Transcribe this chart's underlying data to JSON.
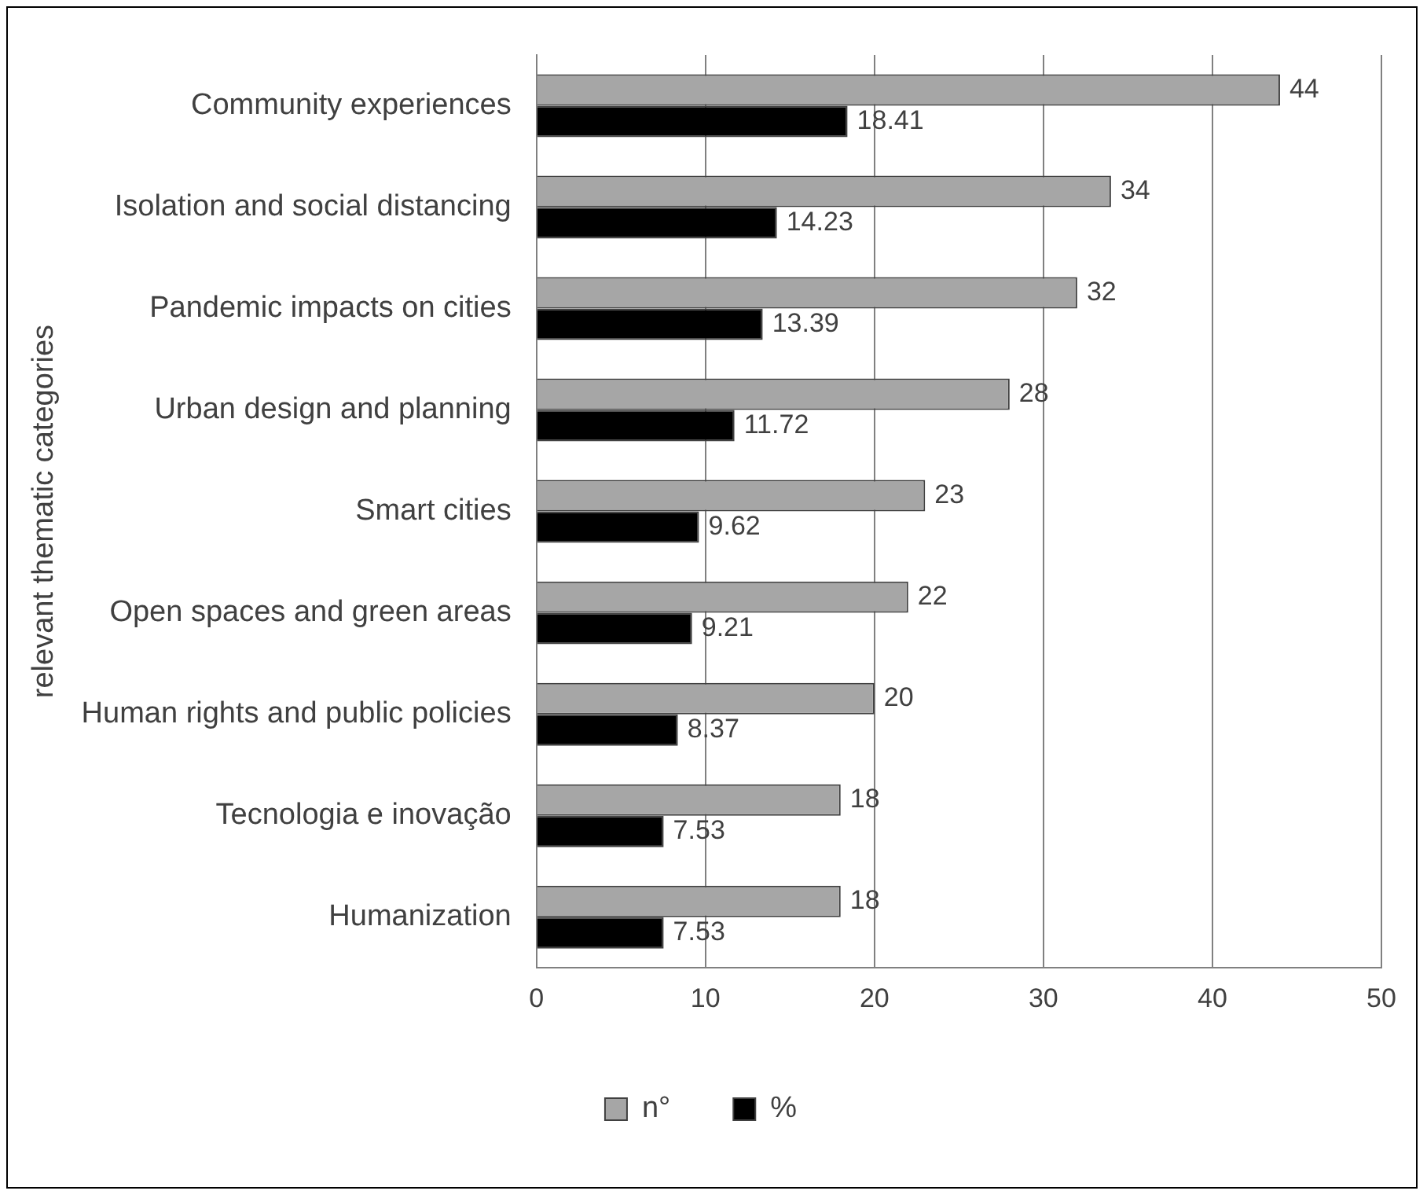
{
  "chart_data": {
    "type": "bar",
    "orientation": "horizontal",
    "ylabel": "relevant thematic categories",
    "categories": [
      "Community experiences",
      "Isolation and social distancing",
      "Pandemic impacts on cities",
      "Urban design and planning",
      "Smart cities",
      "Open spaces and green areas",
      "Human rights and public policies",
      "Tecnologia e inovação",
      "Humanization"
    ],
    "series": [
      {
        "name": "n°",
        "color": "#a6a6a6",
        "values": [
          44,
          34,
          32,
          28,
          23,
          22,
          20,
          18,
          18
        ]
      },
      {
        "name": "%",
        "color": "#000000",
        "values": [
          18.41,
          14.23,
          13.39,
          11.72,
          9.62,
          9.21,
          8.37,
          7.53,
          7.53
        ]
      }
    ],
    "xlim": [
      0,
      50
    ],
    "xticks": [
      0,
      10,
      20,
      30,
      40,
      50
    ],
    "grid": "x",
    "legend": "bottom",
    "data_labels": true
  }
}
